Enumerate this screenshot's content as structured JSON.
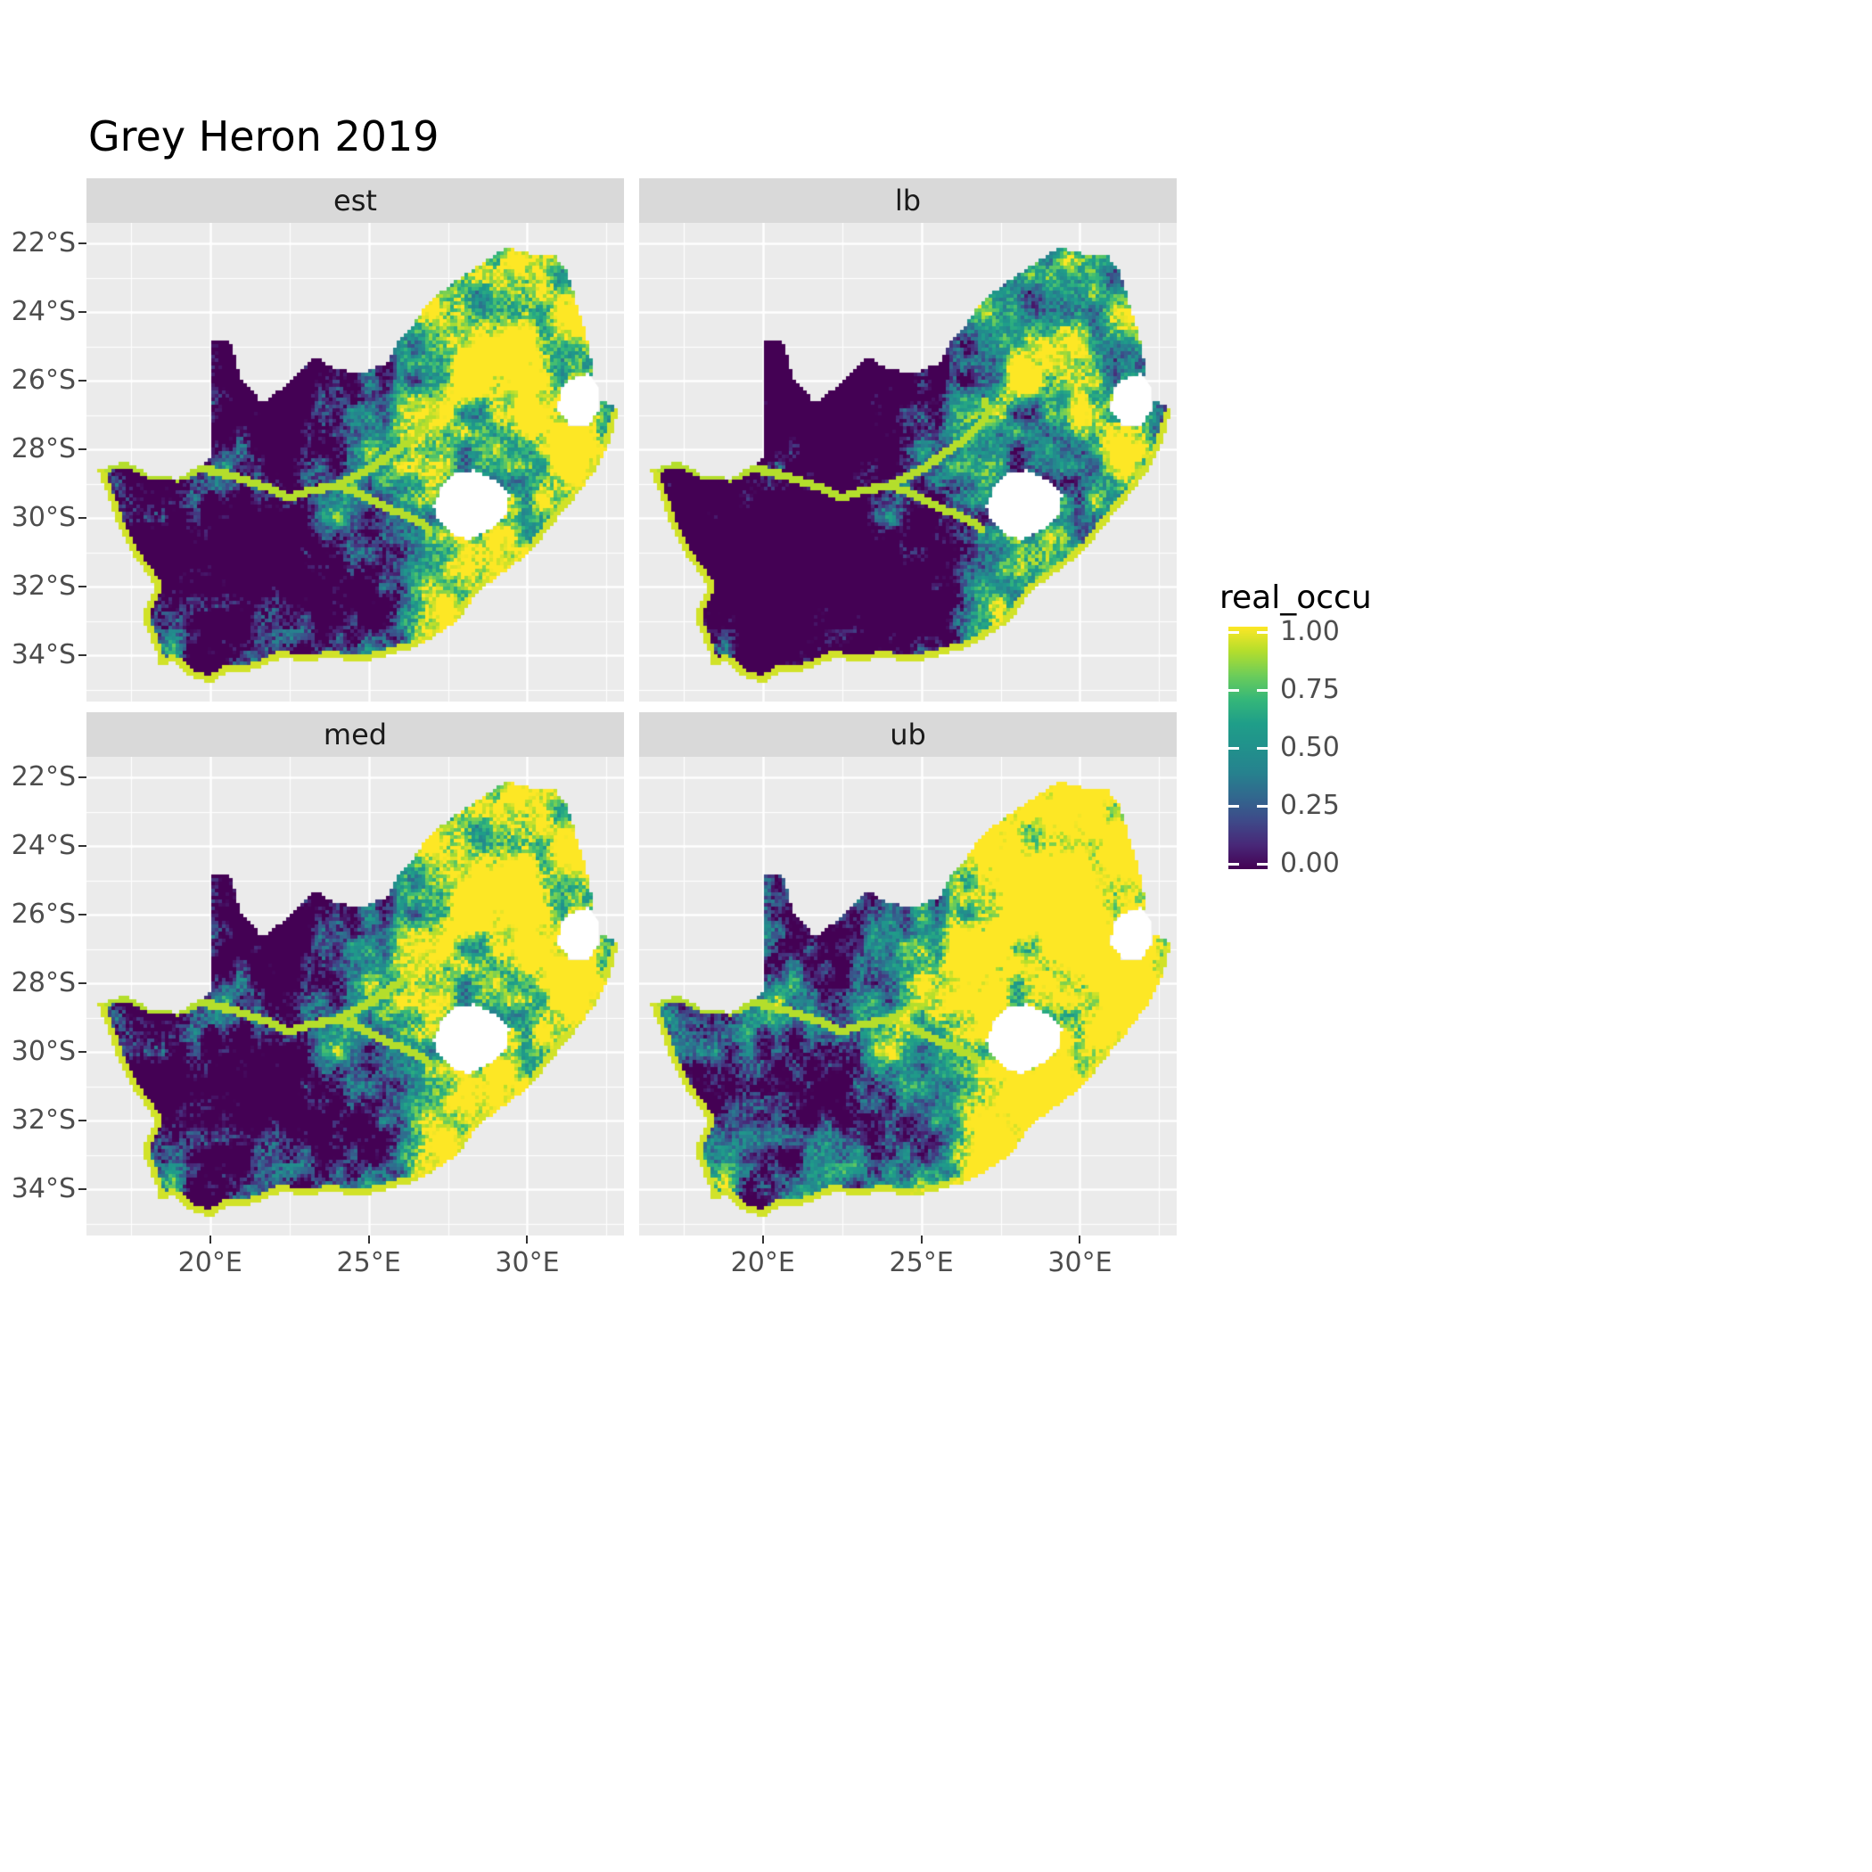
{
  "chart_data": {
    "type": "heatmap",
    "title": "Grey Heron 2019",
    "region": "South Africa",
    "facets": [
      {
        "label": "est",
        "row": 0,
        "col": 0,
        "level_shift": 0
      },
      {
        "label": "lb",
        "row": 0,
        "col": 1,
        "level_shift": -0.28
      },
      {
        "label": "med",
        "row": 1,
        "col": 0,
        "level_shift": 0.08
      },
      {
        "label": "ub",
        "row": 1,
        "col": 1,
        "level_shift": 0.32
      }
    ],
    "x_axis": {
      "ticks": [
        "20°E",
        "25°E",
        "30°E"
      ],
      "values": [
        20,
        25,
        30
      ],
      "range_lon_e": [
        16.1,
        33.05
      ]
    },
    "x_minor": [
      17.5,
      22.5,
      27.5,
      32.5
    ],
    "y_axis": {
      "ticks": [
        "22°S",
        "24°S",
        "26°S",
        "28°S",
        "30°S",
        "32°S",
        "34°S"
      ],
      "values": [
        22,
        24,
        26,
        28,
        30,
        32,
        34
      ],
      "minor": [
        23,
        25,
        27,
        29,
        31,
        33,
        35
      ],
      "range_lat_s": [
        21.4,
        35.35
      ]
    },
    "legend": {
      "title": "real_occu",
      "ticks": [
        "1.00",
        "0.75",
        "0.50",
        "0.25",
        "0.00"
      ],
      "tick_values": [
        1,
        0.75,
        0.5,
        0.25,
        0
      ],
      "colormap": "viridis",
      "stops": [
        [
          0,
          "#440154"
        ],
        [
          0.1,
          "#482878"
        ],
        [
          0.2,
          "#3E4A89"
        ],
        [
          0.3,
          "#31688E"
        ],
        [
          0.4,
          "#26828E"
        ],
        [
          0.5,
          "#21918C"
        ],
        [
          0.6,
          "#1F9E89"
        ],
        [
          0.7,
          "#35B779"
        ],
        [
          0.8,
          "#6DCD59"
        ],
        [
          0.9,
          "#B4DE2C"
        ],
        [
          1,
          "#FDE725"
        ]
      ]
    },
    "geometry": {
      "south_africa": [
        [
          20.0,
          24.77
        ],
        [
          20.65,
          24.9
        ],
        [
          20.95,
          25.9
        ],
        [
          21.65,
          26.65
        ],
        [
          22.15,
          26.3
        ],
        [
          22.6,
          25.95
        ],
        [
          23.25,
          25.3
        ],
        [
          24.0,
          25.65
        ],
        [
          24.75,
          25.78
        ],
        [
          25.55,
          25.5
        ],
        [
          25.9,
          24.9
        ],
        [
          26.45,
          24.3
        ],
        [
          26.95,
          23.65
        ],
        [
          27.75,
          23.1
        ],
        [
          28.6,
          22.55
        ],
        [
          29.35,
          22.1
        ],
        [
          30.1,
          22.3
        ],
        [
          30.85,
          22.3
        ],
        [
          31.3,
          22.9
        ],
        [
          31.55,
          23.75
        ],
        [
          31.85,
          24.6
        ],
        [
          32.05,
          25.55
        ],
        [
          32.05,
          26.1
        ],
        [
          32.35,
          26.55
        ],
        [
          32.9,
          26.85
        ],
        [
          32.55,
          27.9
        ],
        [
          32.15,
          28.6
        ],
        [
          31.6,
          29.3
        ],
        [
          31.0,
          29.95
        ],
        [
          30.25,
          30.85
        ],
        [
          29.4,
          31.5
        ],
        [
          28.5,
          32.1
        ],
        [
          27.8,
          33.0
        ],
        [
          27.0,
          33.5
        ],
        [
          26.35,
          33.8
        ],
        [
          25.65,
          34.0
        ],
        [
          24.8,
          34.2
        ],
        [
          23.9,
          34.1
        ],
        [
          23.0,
          34.15
        ],
        [
          22.2,
          34.1
        ],
        [
          21.3,
          34.45
        ],
        [
          20.5,
          34.5
        ],
        [
          20.0,
          34.83
        ],
        [
          19.35,
          34.6
        ],
        [
          18.85,
          34.2
        ],
        [
          18.4,
          34.3
        ],
        [
          18.3,
          33.9
        ],
        [
          17.85,
          32.85
        ],
        [
          18.3,
          32.0
        ],
        [
          17.6,
          31.1
        ],
        [
          17.05,
          30.1
        ],
        [
          16.75,
          29.3
        ],
        [
          16.45,
          28.6
        ],
        [
          17.3,
          28.35
        ],
        [
          18.1,
          28.75
        ],
        [
          19.0,
          28.85
        ],
        [
          19.6,
          28.5
        ],
        [
          19.98,
          28.3
        ]
      ],
      "lesotho": [
        [
          27.05,
          29.65
        ],
        [
          27.35,
          29.0
        ],
        [
          27.75,
          28.7
        ],
        [
          28.35,
          28.6
        ],
        [
          29.0,
          28.9
        ],
        [
          29.45,
          29.3
        ],
        [
          29.35,
          29.85
        ],
        [
          28.9,
          30.3
        ],
        [
          28.15,
          30.65
        ],
        [
          27.6,
          30.45
        ],
        [
          27.2,
          30.1
        ]
      ],
      "eswatini": [
        [
          31.35,
          25.95
        ],
        [
          31.95,
          25.8
        ],
        [
          32.25,
          26.2
        ],
        [
          32.25,
          26.85
        ],
        [
          31.95,
          27.3
        ],
        [
          31.35,
          27.3
        ],
        [
          30.95,
          26.85
        ],
        [
          31.05,
          26.3
        ]
      ],
      "coastline": [
        [
          32.9,
          26.85
        ],
        [
          32.55,
          27.9
        ],
        [
          32.15,
          28.6
        ],
        [
          31.6,
          29.3
        ],
        [
          31.0,
          29.95
        ],
        [
          30.25,
          30.85
        ],
        [
          29.4,
          31.5
        ],
        [
          28.5,
          32.1
        ],
        [
          27.8,
          33.0
        ],
        [
          27.0,
          33.5
        ],
        [
          26.35,
          33.8
        ],
        [
          25.65,
          34.0
        ],
        [
          24.8,
          34.2
        ],
        [
          23.9,
          34.1
        ],
        [
          23.0,
          34.15
        ],
        [
          22.2,
          34.1
        ],
        [
          21.3,
          34.45
        ],
        [
          20.5,
          34.5
        ],
        [
          20.0,
          34.83
        ],
        [
          19.35,
          34.6
        ],
        [
          18.85,
          34.2
        ],
        [
          18.4,
          34.3
        ],
        [
          18.3,
          33.9
        ],
        [
          17.85,
          32.85
        ],
        [
          18.3,
          32.0
        ],
        [
          17.6,
          31.1
        ],
        [
          17.05,
          30.1
        ],
        [
          16.75,
          29.3
        ],
        [
          16.45,
          28.6
        ]
      ],
      "rivers": [
        [
          [
            16.6,
            28.55
          ],
          [
            17.3,
            28.4
          ],
          [
            18.1,
            28.75
          ],
          [
            19.0,
            28.82
          ],
          [
            19.7,
            28.55
          ],
          [
            20.4,
            28.7
          ],
          [
            21.1,
            28.9
          ],
          [
            21.9,
            29.15
          ],
          [
            22.5,
            29.4
          ],
          [
            23.2,
            29.2
          ],
          [
            24.0,
            29.05
          ],
          [
            24.6,
            29.25
          ],
          [
            25.2,
            29.55
          ],
          [
            25.8,
            29.8
          ],
          [
            26.4,
            30.0
          ],
          [
            26.9,
            30.3
          ]
        ],
        [
          [
            24.0,
            29.05
          ],
          [
            24.9,
            28.65
          ],
          [
            25.6,
            28.2
          ],
          [
            26.3,
            27.75
          ],
          [
            26.8,
            27.3
          ],
          [
            27.15,
            26.9
          ],
          [
            27.0,
            26.6
          ]
        ]
      ],
      "spots": [
        {
          "lon": 28.1,
          "lat": 26.05,
          "r": 1.05,
          "amp": 0.5
        },
        {
          "lon": 29.9,
          "lat": 24.9,
          "r": 1.4,
          "amp": 0.3
        },
        {
          "lon": 18.7,
          "lat": 33.85,
          "r": 0.8,
          "amp": 0.4
        },
        {
          "lon": 31.4,
          "lat": 23.2,
          "r": 1.2,
          "amp": -0.45
        },
        {
          "lon": 28.6,
          "lat": 23.6,
          "r": 1.0,
          "amp": -0.3
        },
        {
          "lon": 22.5,
          "lat": 28.3,
          "r": 1.5,
          "amp": -0.15
        },
        {
          "lon": 30.4,
          "lat": 29.6,
          "r": 1.0,
          "amp": 0.25
        }
      ]
    }
  },
  "colors": {
    "panel_bg": "#EBEBEB",
    "strip_bg": "#D9D9D9",
    "grid": "#FFFFFF",
    "tick_text": "#4D4D4D",
    "strip_text": "#1A1A1A",
    "title_text": "#000000",
    "axis_tick": "#333333",
    "hole_fill": "#FFFFFF"
  }
}
